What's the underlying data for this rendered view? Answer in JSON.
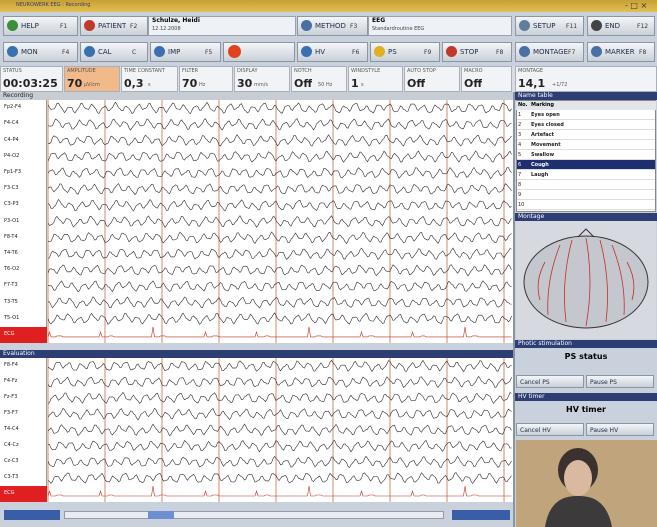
{
  "window": {
    "title": "NEUROWERK EEG : Recording"
  },
  "toolbar_top": [
    {
      "label": "HELP",
      "key": "F1"
    },
    {
      "label": "PATIENT",
      "key": "F2"
    },
    {
      "label": "METHOD",
      "key": "F3"
    },
    {
      "label": "SETUP",
      "key": "F11"
    },
    {
      "label": "END",
      "key": "F12"
    }
  ],
  "patient": {
    "name": "Schulze, Heidi",
    "date": "12.12.2008"
  },
  "method": {
    "name": "EEG",
    "detail": "Standardroutine EEG"
  },
  "toolbar_bottom": [
    {
      "label": "MON",
      "key": "F4"
    },
    {
      "label": "CAL",
      "key": "C"
    },
    {
      "label": "IMP",
      "key": "F5"
    },
    {
      "label": "HV",
      "key": "F6"
    },
    {
      "label": "PS",
      "key": "F9"
    },
    {
      "label": "STOP",
      "key": "F8"
    },
    {
      "label": "MONTAGE",
      "key": "F7"
    },
    {
      "label": "MARKER",
      "key": "F8"
    }
  ],
  "status": [
    {
      "label": "STATUS",
      "value": "00:03:25"
    },
    {
      "label": "AMPLITUDE",
      "value": "70",
      "unit": "µV/cm"
    },
    {
      "label": "TIME CONSTANT",
      "value": "0,3",
      "unit": "s"
    },
    {
      "label": "FILTER",
      "value": "70",
      "unit": "Hz"
    },
    {
      "label": "DISPLAY",
      "value": "30",
      "unit": "mm/s"
    },
    {
      "label": "NOTCH",
      "value": "Off",
      "unit": "50 Hz"
    },
    {
      "label": "WINDSTYLE",
      "value": "1",
      "unit": "s"
    },
    {
      "label": "AUTO STOP",
      "value": "Off"
    },
    {
      "label": "MACRO",
      "value": "Off"
    }
  ],
  "montage_status": {
    "label": "MONTAGE",
    "value": "14,1",
    "unit": "+1/72"
  },
  "recording": {
    "title": "Recording",
    "channels": [
      "Fp2-F4",
      "F4-C4",
      "C4-P4",
      "P4-O2",
      "Fp1-F3",
      "F3-C3",
      "C3-P3",
      "P3-O1",
      "F8-T4",
      "T4-T6",
      "T6-O2",
      "F7-T3",
      "T3-T5",
      "T5-O1",
      "ECG"
    ]
  },
  "evaluation": {
    "title": "Evaluation",
    "channels": [
      "F8-F4",
      "F4-Fz",
      "Fz-F3",
      "F3-F7",
      "T4-C4",
      "C4-Cz",
      "Cz-C3",
      "C3-T3",
      "ECG"
    ]
  },
  "name_table": {
    "title": "Name table",
    "headers": [
      "No.",
      "Marking"
    ],
    "selected": 6,
    "rows": [
      {
        "no": 1,
        "marking": "Eyes open"
      },
      {
        "no": 2,
        "marking": "Eyes closed"
      },
      {
        "no": 3,
        "marking": "Artefact"
      },
      {
        "no": 4,
        "marking": "Movement"
      },
      {
        "no": 5,
        "marking": "Swallow"
      },
      {
        "no": 6,
        "marking": "Cough"
      },
      {
        "no": 7,
        "marking": "Laugh"
      },
      {
        "no": 8
      },
      {
        "no": 9
      },
      {
        "no": 10
      }
    ]
  },
  "montage_panel": {
    "title": "Montage"
  },
  "photic": {
    "title": "Photic stimulation"
  },
  "ps_status": {
    "title": "PS status",
    "buttons": [
      "Cancel PS",
      "Pause PS"
    ]
  },
  "hv_timer": {
    "header": "HV timer",
    "title": "HV timer",
    "buttons": [
      "Cancel HV",
      "Pause HV"
    ]
  }
}
